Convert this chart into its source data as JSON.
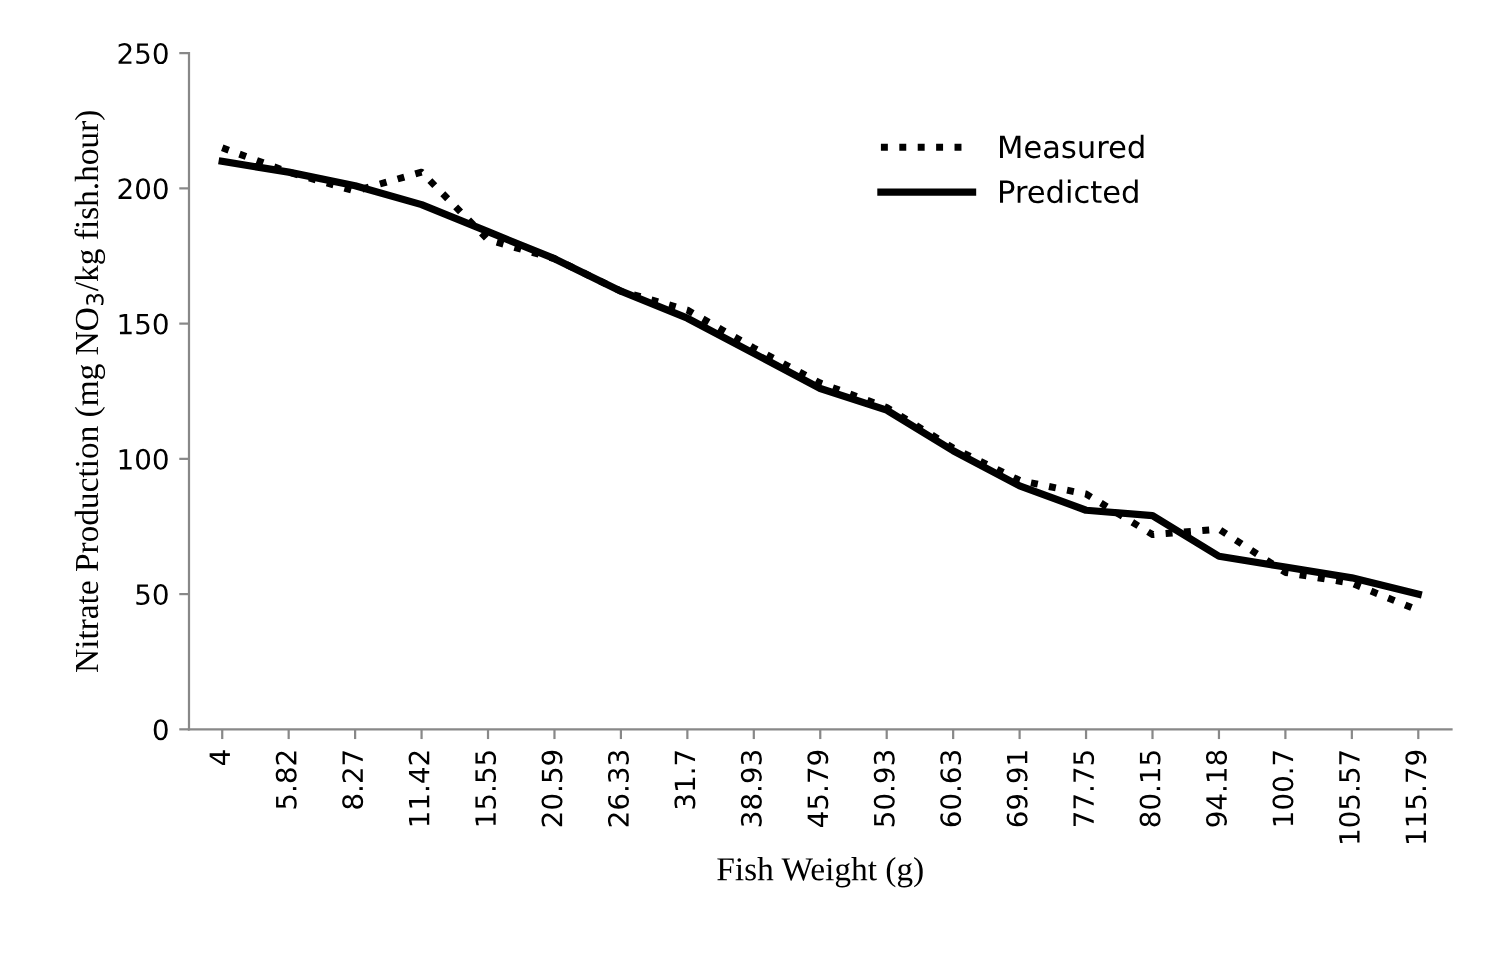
{
  "chart_data": {
    "type": "line",
    "xlabel": "Fish Weight (g)",
    "ylabel": "Nitrate Production (mg NO$_{3}$/kg fish.hour)",
    "categories": [
      "4",
      "5.82",
      "8.27",
      "11.42",
      "15.55",
      "20.59",
      "26.33",
      "31.7",
      "38.93",
      "45.79",
      "50.93",
      "60.63",
      "69.91",
      "77.75",
      "80.15",
      "94.18",
      "100.7",
      "105.57",
      "115.79"
    ],
    "series": [
      {
        "name": "Measured",
        "color": "#000000",
        "line_style": "dotted",
        "values": [
          215,
          206,
          199,
          206,
          181,
          174,
          162,
          155,
          141,
          128,
          119,
          104,
          92,
          87,
          72,
          74,
          58,
          54,
          44
        ]
      },
      {
        "name": "Predicted",
        "color": "#000000",
        "line_style": "solid",
        "values": [
          210,
          206,
          201,
          194,
          184,
          174,
          162,
          152,
          139,
          126,
          118,
          103,
          90,
          81,
          79,
          64,
          60,
          56,
          50
        ]
      }
    ],
    "ylim": [
      0,
      250
    ],
    "yticks": [
      0,
      50,
      100,
      150,
      200,
      250
    ],
    "grid": false,
    "legend": "top right",
    "marker": "none"
  }
}
